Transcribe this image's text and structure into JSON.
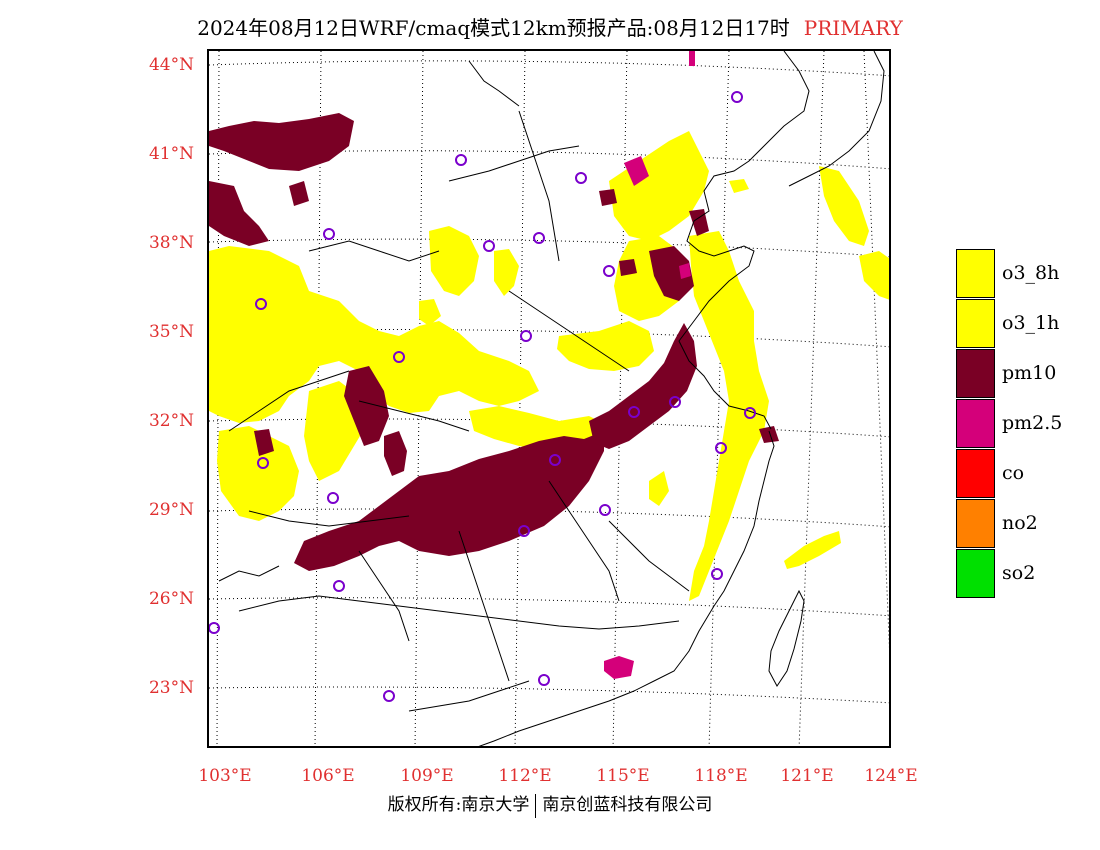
{
  "title": {
    "main": "2024年08月12日WRF/cmaq模式12km预报产品:08月12日17时",
    "tag": "PRIMARY"
  },
  "colors": {
    "accent_red": "#e03030",
    "o3_8h": "#ffff00",
    "o3_1h": "#ffff00",
    "pm10": "#7a0025",
    "pm25": "#d4007a",
    "co": "#ff0000",
    "no2": "#ff8000",
    "so2": "#00e000",
    "station": "#7a00cc"
  },
  "lat_labels": [
    "44°N",
    "41°N",
    "38°N",
    "35°N",
    "32°N",
    "29°N",
    "26°N",
    "23°N"
  ],
  "lon_labels": [
    "103°E",
    "106°E",
    "109°E",
    "112°E",
    "115°E",
    "118°E",
    "121°E",
    "124°E"
  ],
  "legend": [
    {
      "label": "o3_8h",
      "color": "#ffff00"
    },
    {
      "label": "o3_1h",
      "color": "#ffff00"
    },
    {
      "label": "pm10",
      "color": "#7a0025"
    },
    {
      "label": "pm2.5",
      "color": "#d4007a"
    },
    {
      "label": "co",
      "color": "#ff0000"
    },
    {
      "label": "no2",
      "color": "#ff8000"
    },
    {
      "label": "so2",
      "color": "#00e000"
    }
  ],
  "copyright": {
    "left": "版权所有:南京大学",
    "right": "南京创蓝科技有限公司"
  }
}
